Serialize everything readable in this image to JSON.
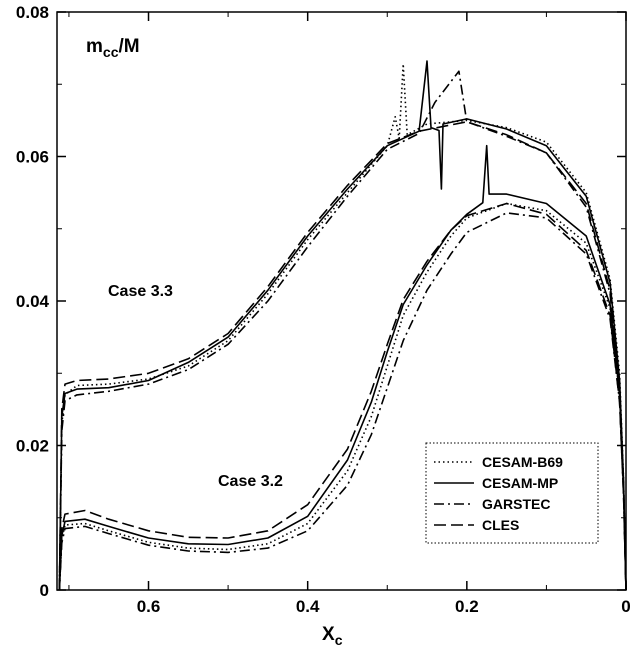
{
  "chart_data": {
    "type": "line",
    "xlabel": "X",
    "xlabel_sub": "c",
    "ylabel": "",
    "xlim": [
      0.715,
      0.0
    ],
    "ylim": [
      0.0,
      0.08
    ],
    "x_ticks": [
      0.6,
      0.4,
      0.2,
      0
    ],
    "x_tick_labels": [
      "0.6",
      "0.4",
      "0.2",
      "0"
    ],
    "y_ticks": [
      0,
      0.02,
      0.04,
      0.06,
      0.08
    ],
    "y_tick_labels": [
      "0",
      "0.02",
      "0.04",
      "0.06",
      "0.08"
    ],
    "annotations": {
      "ylabel_inset": "m",
      "ylabel_inset_sub": "cc",
      "ylabel_inset_tail": "/M",
      "case_33": "Case 3.3",
      "case_32": "Case 3.2"
    },
    "legend_position": "bottom-right",
    "series": [
      {
        "name": "CESAM-B69",
        "style": "dotted",
        "case33": [
          [
            0.712,
            0
          ],
          [
            0.709,
            0.023
          ],
          [
            0.705,
            0.027
          ],
          [
            0.69,
            0.0283
          ],
          [
            0.65,
            0.0285
          ],
          [
            0.6,
            0.0292
          ],
          [
            0.55,
            0.031
          ],
          [
            0.5,
            0.0345
          ],
          [
            0.45,
            0.041
          ],
          [
            0.4,
            0.0485
          ],
          [
            0.35,
            0.055
          ],
          [
            0.3,
            0.0615
          ],
          [
            0.29,
            0.0655
          ],
          [
            0.285,
            0.0625
          ],
          [
            0.28,
            0.0728
          ],
          [
            0.275,
            0.063
          ],
          [
            0.25,
            0.0645
          ],
          [
            0.2,
            0.065
          ],
          [
            0.15,
            0.064
          ],
          [
            0.1,
            0.062
          ],
          [
            0.05,
            0.055
          ],
          [
            0.02,
            0.043
          ],
          [
            0.008,
            0.03
          ],
          [
            0.003,
            0.015
          ],
          [
            0.0,
            0
          ]
        ],
        "case32": [
          [
            0.712,
            0
          ],
          [
            0.709,
            0.007
          ],
          [
            0.705,
            0.009
          ],
          [
            0.68,
            0.0092
          ],
          [
            0.65,
            0.0082
          ],
          [
            0.6,
            0.0066
          ],
          [
            0.55,
            0.0058
          ],
          [
            0.5,
            0.0056
          ],
          [
            0.45,
            0.0064
          ],
          [
            0.4,
            0.0092
          ],
          [
            0.35,
            0.0165
          ],
          [
            0.32,
            0.024
          ],
          [
            0.3,
            0.031
          ],
          [
            0.28,
            0.038
          ],
          [
            0.25,
            0.044
          ],
          [
            0.22,
            0.049
          ],
          [
            0.2,
            0.0515
          ],
          [
            0.15,
            0.0535
          ],
          [
            0.1,
            0.0525
          ],
          [
            0.05,
            0.048
          ],
          [
            0.02,
            0.039
          ],
          [
            0.008,
            0.027
          ],
          [
            0.003,
            0.014
          ],
          [
            0.0,
            0
          ]
        ]
      },
      {
        "name": "CESAM-MP",
        "style": "solid",
        "case33": [
          [
            0.712,
            0
          ],
          [
            0.709,
            0.024
          ],
          [
            0.705,
            0.0272
          ],
          [
            0.69,
            0.0278
          ],
          [
            0.65,
            0.028
          ],
          [
            0.6,
            0.029
          ],
          [
            0.55,
            0.0315
          ],
          [
            0.5,
            0.035
          ],
          [
            0.45,
            0.0415
          ],
          [
            0.4,
            0.049
          ],
          [
            0.35,
            0.0555
          ],
          [
            0.3,
            0.0615
          ],
          [
            0.26,
            0.0635
          ],
          [
            0.25,
            0.0732
          ],
          [
            0.245,
            0.064
          ],
          [
            0.235,
            0.0636
          ],
          [
            0.232,
            0.0555
          ],
          [
            0.23,
            0.0645
          ],
          [
            0.2,
            0.0652
          ],
          [
            0.15,
            0.0638
          ],
          [
            0.1,
            0.0615
          ],
          [
            0.05,
            0.0545
          ],
          [
            0.02,
            0.0425
          ],
          [
            0.008,
            0.029
          ],
          [
            0.003,
            0.015
          ],
          [
            0.0,
            0
          ]
        ],
        "case32": [
          [
            0.712,
            0
          ],
          [
            0.709,
            0.0075
          ],
          [
            0.705,
            0.0095
          ],
          [
            0.68,
            0.0098
          ],
          [
            0.65,
            0.0088
          ],
          [
            0.6,
            0.0072
          ],
          [
            0.55,
            0.0064
          ],
          [
            0.5,
            0.0063
          ],
          [
            0.45,
            0.0072
          ],
          [
            0.4,
            0.0102
          ],
          [
            0.35,
            0.018
          ],
          [
            0.32,
            0.026
          ],
          [
            0.3,
            0.033
          ],
          [
            0.28,
            0.0395
          ],
          [
            0.25,
            0.045
          ],
          [
            0.22,
            0.0498
          ],
          [
            0.2,
            0.052
          ],
          [
            0.18,
            0.0536
          ],
          [
            0.175,
            0.0615
          ],
          [
            0.172,
            0.0548
          ],
          [
            0.15,
            0.0548
          ],
          [
            0.1,
            0.0535
          ],
          [
            0.05,
            0.049
          ],
          [
            0.02,
            0.0395
          ],
          [
            0.008,
            0.027
          ],
          [
            0.003,
            0.014
          ],
          [
            0.0,
            0
          ]
        ]
      },
      {
        "name": "GARSTEC",
        "style": "dashdot",
        "case33": [
          [
            0.712,
            0
          ],
          [
            0.709,
            0.022
          ],
          [
            0.705,
            0.0262
          ],
          [
            0.69,
            0.027
          ],
          [
            0.65,
            0.0275
          ],
          [
            0.6,
            0.0285
          ],
          [
            0.55,
            0.0305
          ],
          [
            0.5,
            0.034
          ],
          [
            0.45,
            0.04
          ],
          [
            0.4,
            0.0475
          ],
          [
            0.35,
            0.0545
          ],
          [
            0.3,
            0.061
          ],
          [
            0.26,
            0.0632
          ],
          [
            0.24,
            0.0675
          ],
          [
            0.21,
            0.0718
          ],
          [
            0.2,
            0.0648
          ],
          [
            0.15,
            0.0628
          ],
          [
            0.1,
            0.0605
          ],
          [
            0.05,
            0.053
          ],
          [
            0.02,
            0.041
          ],
          [
            0.008,
            0.028
          ],
          [
            0.003,
            0.014
          ],
          [
            0.0,
            0
          ]
        ],
        "case32": [
          [
            0.712,
            0
          ],
          [
            0.709,
            0.0065
          ],
          [
            0.705,
            0.0085
          ],
          [
            0.68,
            0.0088
          ],
          [
            0.65,
            0.0078
          ],
          [
            0.6,
            0.0062
          ],
          [
            0.55,
            0.0054
          ],
          [
            0.5,
            0.0052
          ],
          [
            0.45,
            0.0058
          ],
          [
            0.4,
            0.0082
          ],
          [
            0.35,
            0.0145
          ],
          [
            0.32,
            0.0215
          ],
          [
            0.3,
            0.028
          ],
          [
            0.28,
            0.0345
          ],
          [
            0.25,
            0.0415
          ],
          [
            0.22,
            0.0465
          ],
          [
            0.2,
            0.0495
          ],
          [
            0.15,
            0.0522
          ],
          [
            0.1,
            0.0515
          ],
          [
            0.05,
            0.0465
          ],
          [
            0.02,
            0.0375
          ],
          [
            0.008,
            0.026
          ],
          [
            0.003,
            0.013
          ],
          [
            0.0,
            0
          ]
        ]
      },
      {
        "name": "CLES",
        "style": "dashed",
        "case33": [
          [
            0.712,
            0
          ],
          [
            0.709,
            0.025
          ],
          [
            0.705,
            0.0285
          ],
          [
            0.69,
            0.029
          ],
          [
            0.65,
            0.0292
          ],
          [
            0.6,
            0.03
          ],
          [
            0.55,
            0.032
          ],
          [
            0.5,
            0.0355
          ],
          [
            0.45,
            0.042
          ],
          [
            0.4,
            0.0495
          ],
          [
            0.35,
            0.056
          ],
          [
            0.3,
            0.0618
          ],
          [
            0.26,
            0.0635
          ],
          [
            0.2,
            0.0648
          ],
          [
            0.15,
            0.063
          ],
          [
            0.1,
            0.0605
          ],
          [
            0.05,
            0.0535
          ],
          [
            0.02,
            0.0415
          ],
          [
            0.008,
            0.028
          ],
          [
            0.003,
            0.014
          ],
          [
            0.0,
            0
          ]
        ],
        "case32": [
          [
            0.712,
            0
          ],
          [
            0.709,
            0.0085
          ],
          [
            0.705,
            0.0105
          ],
          [
            0.68,
            0.011
          ],
          [
            0.65,
            0.0098
          ],
          [
            0.6,
            0.0082
          ],
          [
            0.55,
            0.0073
          ],
          [
            0.5,
            0.0072
          ],
          [
            0.45,
            0.0082
          ],
          [
            0.4,
            0.0118
          ],
          [
            0.35,
            0.0195
          ],
          [
            0.32,
            0.0275
          ],
          [
            0.3,
            0.034
          ],
          [
            0.28,
            0.0402
          ],
          [
            0.25,
            0.0455
          ],
          [
            0.22,
            0.0498
          ],
          [
            0.2,
            0.0518
          ],
          [
            0.15,
            0.0535
          ],
          [
            0.1,
            0.052
          ],
          [
            0.05,
            0.047
          ],
          [
            0.02,
            0.038
          ],
          [
            0.008,
            0.026
          ],
          [
            0.003,
            0.013
          ],
          [
            0.0,
            0
          ]
        ]
      }
    ]
  }
}
